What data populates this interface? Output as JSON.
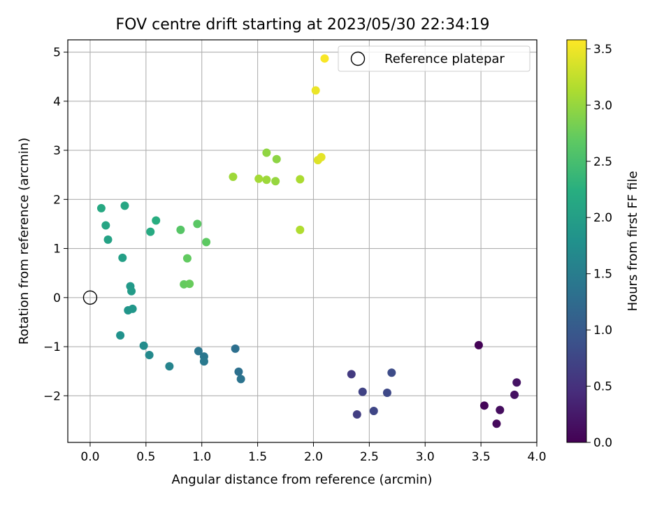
{
  "chart_data": {
    "type": "scatter",
    "title": "FOV centre drift starting at 2023/05/30 22:34:19",
    "xlabel": "Angular distance from reference (arcmin)",
    "ylabel": "Rotation from reference (arcmin)",
    "xlim": [
      -0.2,
      4.0
    ],
    "ylim": [
      -2.95,
      5.25
    ],
    "xticks": [
      0.0,
      0.5,
      1.0,
      1.5,
      2.0,
      2.5,
      3.0,
      3.5,
      4.0
    ],
    "xtick_labels": [
      "0.0",
      "0.5",
      "1.0",
      "1.5",
      "2.0",
      "2.5",
      "3.0",
      "3.5",
      "4.0"
    ],
    "yticks": [
      -2,
      -1,
      0,
      1,
      2,
      3,
      4,
      5
    ],
    "ytick_labels": [
      "−2",
      "−1",
      "0",
      "1",
      "2",
      "3",
      "4",
      "5"
    ],
    "grid": true,
    "legend": {
      "position": "top-right",
      "label": "Reference platepar"
    },
    "reference": {
      "x": 0.0,
      "y": 0.0
    },
    "colorbar": {
      "label": "Hours from first FF file",
      "min": 0.0,
      "max": 3.58,
      "ticks": [
        0.0,
        0.5,
        1.0,
        1.5,
        2.0,
        2.5,
        3.0,
        3.5
      ],
      "tick_labels": [
        "0.0",
        "0.5",
        "1.0",
        "1.5",
        "2.0",
        "2.5",
        "3.0",
        "3.5"
      ],
      "colormap": "viridis"
    },
    "points": [
      {
        "x": 3.48,
        "y": -0.97,
        "c": 0.02
      },
      {
        "x": 3.53,
        "y": -2.2,
        "c": 0.05
      },
      {
        "x": 3.64,
        "y": -2.57,
        "c": 0.08
      },
      {
        "x": 3.67,
        "y": -2.29,
        "c": 0.12
      },
      {
        "x": 3.8,
        "y": -1.98,
        "c": 0.15
      },
      {
        "x": 3.82,
        "y": -1.73,
        "c": 0.18
      },
      {
        "x": 2.34,
        "y": -1.56,
        "c": 0.6
      },
      {
        "x": 2.39,
        "y": -2.38,
        "c": 0.65
      },
      {
        "x": 2.44,
        "y": -1.92,
        "c": 0.7
      },
      {
        "x": 2.54,
        "y": -2.31,
        "c": 0.75
      },
      {
        "x": 2.66,
        "y": -1.94,
        "c": 0.78
      },
      {
        "x": 2.7,
        "y": -1.53,
        "c": 0.82
      },
      {
        "x": 1.3,
        "y": -1.04,
        "c": 1.3
      },
      {
        "x": 1.33,
        "y": -1.51,
        "c": 1.32
      },
      {
        "x": 1.35,
        "y": -1.66,
        "c": 1.35
      },
      {
        "x": 0.97,
        "y": -1.09,
        "c": 1.4
      },
      {
        "x": 1.02,
        "y": -1.2,
        "c": 1.42
      },
      {
        "x": 1.02,
        "y": -1.3,
        "c": 1.45
      },
      {
        "x": 0.71,
        "y": -1.4,
        "c": 1.6
      },
      {
        "x": 0.53,
        "y": -1.17,
        "c": 1.68
      },
      {
        "x": 0.48,
        "y": -0.98,
        "c": 1.72
      },
      {
        "x": 0.27,
        "y": -0.77,
        "c": 1.8
      },
      {
        "x": 0.34,
        "y": -0.26,
        "c": 1.85
      },
      {
        "x": 0.38,
        "y": -0.23,
        "c": 1.88
      },
      {
        "x": 0.36,
        "y": 0.23,
        "c": 1.92
      },
      {
        "x": 0.37,
        "y": 0.13,
        "c": 1.94
      },
      {
        "x": 0.29,
        "y": 0.81,
        "c": 2.0
      },
      {
        "x": 0.16,
        "y": 1.18,
        "c": 2.05
      },
      {
        "x": 0.14,
        "y": 1.47,
        "c": 2.1
      },
      {
        "x": 0.1,
        "y": 1.82,
        "c": 2.15
      },
      {
        "x": 0.31,
        "y": 1.87,
        "c": 2.12
      },
      {
        "x": 0.54,
        "y": 1.34,
        "c": 2.18
      },
      {
        "x": 0.59,
        "y": 1.57,
        "c": 2.22
      },
      {
        "x": 0.81,
        "y": 1.38,
        "c": 2.62
      },
      {
        "x": 0.96,
        "y": 1.5,
        "c": 2.65
      },
      {
        "x": 1.04,
        "y": 1.13,
        "c": 2.68
      },
      {
        "x": 0.87,
        "y": 0.8,
        "c": 2.7
      },
      {
        "x": 0.84,
        "y": 0.27,
        "c": 2.72
      },
      {
        "x": 0.89,
        "y": 0.28,
        "c": 2.74
      },
      {
        "x": 1.28,
        "y": 2.46,
        "c": 3.05
      },
      {
        "x": 1.51,
        "y": 2.42,
        "c": 3.08
      },
      {
        "x": 1.58,
        "y": 2.4,
        "c": 3.04
      },
      {
        "x": 1.66,
        "y": 2.37,
        "c": 3.0
      },
      {
        "x": 1.58,
        "y": 2.95,
        "c": 2.97
      },
      {
        "x": 1.67,
        "y": 2.82,
        "c": 2.95
      },
      {
        "x": 1.88,
        "y": 2.41,
        "c": 3.12
      },
      {
        "x": 1.88,
        "y": 1.38,
        "c": 3.15
      },
      {
        "x": 2.04,
        "y": 2.8,
        "c": 3.4
      },
      {
        "x": 2.07,
        "y": 2.86,
        "c": 3.44
      },
      {
        "x": 2.02,
        "y": 4.22,
        "c": 3.48
      },
      {
        "x": 2.1,
        "y": 4.87,
        "c": 3.55
      }
    ]
  }
}
